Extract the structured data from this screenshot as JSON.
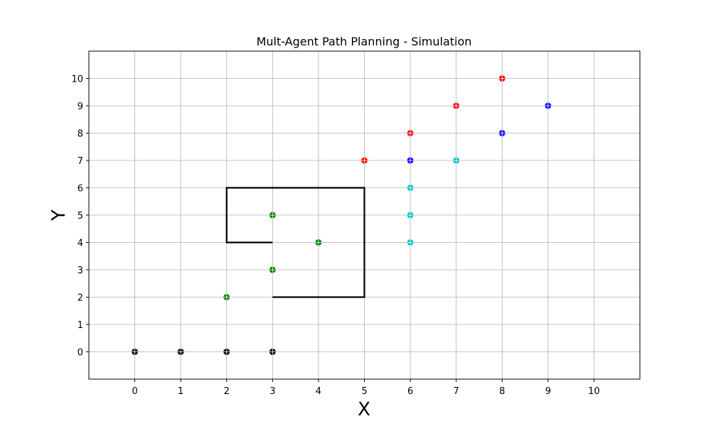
{
  "chart_data": {
    "type": "scatter",
    "title": "Mult-Agent Path Planning - Simulation",
    "xlabel": "X",
    "ylabel": "Y",
    "xlim": [
      -1,
      11
    ],
    "ylim": [
      -1,
      11
    ],
    "xticks": [
      0,
      1,
      2,
      3,
      4,
      5,
      6,
      7,
      8,
      9,
      10
    ],
    "yticks": [
      0,
      1,
      2,
      3,
      4,
      5,
      6,
      7,
      8,
      9,
      10
    ],
    "grid": true,
    "obstacle": {
      "color": "#000000",
      "points": [
        [
          3,
          4
        ],
        [
          2,
          4
        ],
        [
          2,
          6
        ],
        [
          5,
          6
        ],
        [
          5,
          2
        ],
        [
          3,
          2
        ]
      ]
    },
    "series": [
      {
        "color": "#000000",
        "points": [
          [
            0,
            0
          ],
          [
            1,
            0
          ],
          [
            2,
            0
          ],
          [
            3,
            0
          ]
        ]
      },
      {
        "color": "#008000",
        "points": [
          [
            2,
            2
          ],
          [
            3,
            3
          ],
          [
            4,
            4
          ],
          [
            3,
            5
          ]
        ]
      },
      {
        "color": "#00bfbf",
        "points": [
          [
            6,
            4
          ],
          [
            6,
            5
          ],
          [
            6,
            6
          ],
          [
            7,
            7
          ]
        ]
      },
      {
        "color": "#0000ff",
        "points": [
          [
            6,
            7
          ],
          [
            8,
            8
          ],
          [
            9,
            9
          ]
        ]
      },
      {
        "color": "#ff0000",
        "points": [
          [
            5,
            7
          ],
          [
            6,
            8
          ],
          [
            7,
            9
          ],
          [
            8,
            10
          ]
        ]
      }
    ]
  }
}
